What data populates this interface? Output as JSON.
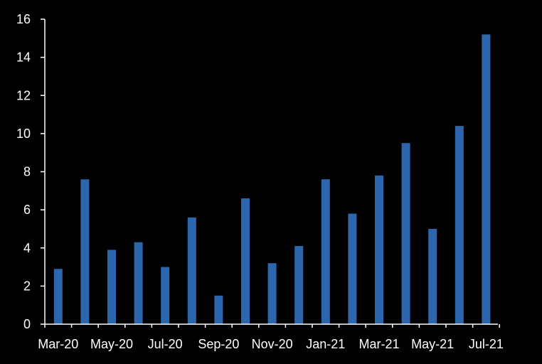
{
  "chart_data": {
    "type": "bar",
    "categories": [
      "Mar-20",
      "Apr-20",
      "May-20",
      "Jun-20",
      "Jul-20",
      "Aug-20",
      "Sep-20",
      "Oct-20",
      "Nov-20",
      "Dec-20",
      "Jan-21",
      "Feb-21",
      "Mar-21",
      "Apr-21",
      "May-21",
      "Jun-21",
      "Jul-21"
    ],
    "x_tick_labels": [
      "Mar-20",
      "May-20",
      "Jul-20",
      "Sep-20",
      "Nov-20",
      "Jan-21",
      "Mar-21",
      "May-21",
      "Jul-21"
    ],
    "values": [
      2.9,
      7.6,
      3.9,
      4.3,
      3.0,
      5.6,
      1.5,
      6.6,
      3.2,
      4.1,
      7.6,
      5.8,
      7.8,
      9.5,
      5.0,
      10.4,
      15.2
    ],
    "y_ticks": [
      0,
      2,
      4,
      6,
      8,
      10,
      12,
      14,
      16
    ],
    "ylim": [
      0,
      16
    ],
    "title": "",
    "xlabel": "",
    "ylabel": "",
    "grid": false,
    "legend": "none",
    "colors": {
      "bar": "#2e66ad",
      "background": "#000000",
      "axis": "#ffffff",
      "text": "#ffffff"
    }
  }
}
